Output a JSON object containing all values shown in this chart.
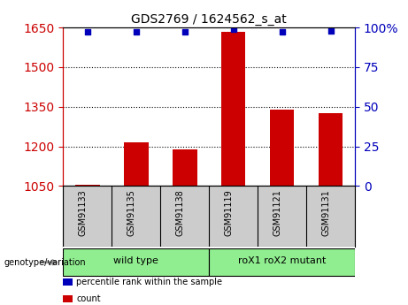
{
  "title": "GDS2769 / 1624562_s_at",
  "samples": [
    "GSM91133",
    "GSM91135",
    "GSM91138",
    "GSM91119",
    "GSM91121",
    "GSM91131"
  ],
  "counts": [
    1055,
    1215,
    1190,
    1635,
    1340,
    1325
  ],
  "percentile_ranks": [
    97,
    97,
    97,
    99,
    97,
    98
  ],
  "ylim_left": [
    1050,
    1650
  ],
  "yticks_left": [
    1050,
    1200,
    1350,
    1500,
    1650
  ],
  "yticks_right": [
    0,
    25,
    50,
    75,
    100
  ],
  "ylim_right": [
    0,
    100
  ],
  "bar_color": "#cc0000",
  "dot_color": "#0000bb",
  "groups": [
    {
      "label": "wild type",
      "xstart": 0,
      "xend": 3,
      "color": "#90ee90"
    },
    {
      "label": "roX1 roX2 mutant",
      "xstart": 3,
      "xend": 6,
      "color": "#90ee90"
    }
  ],
  "grid_color": "#000000",
  "tick_color_left": "#cc0000",
  "tick_color_right": "#0000bb",
  "legend_items": [
    {
      "label": "count",
      "color": "#cc0000"
    },
    {
      "label": "percentile rank within the sample",
      "color": "#0000bb"
    }
  ],
  "genotype_label": "genotype/variation",
  "arrow_color": "#999999",
  "xticklabels_bg": "#cccccc",
  "plot_bg": "#ffffff",
  "outer_bg": "#ffffff",
  "n_samples": 6
}
